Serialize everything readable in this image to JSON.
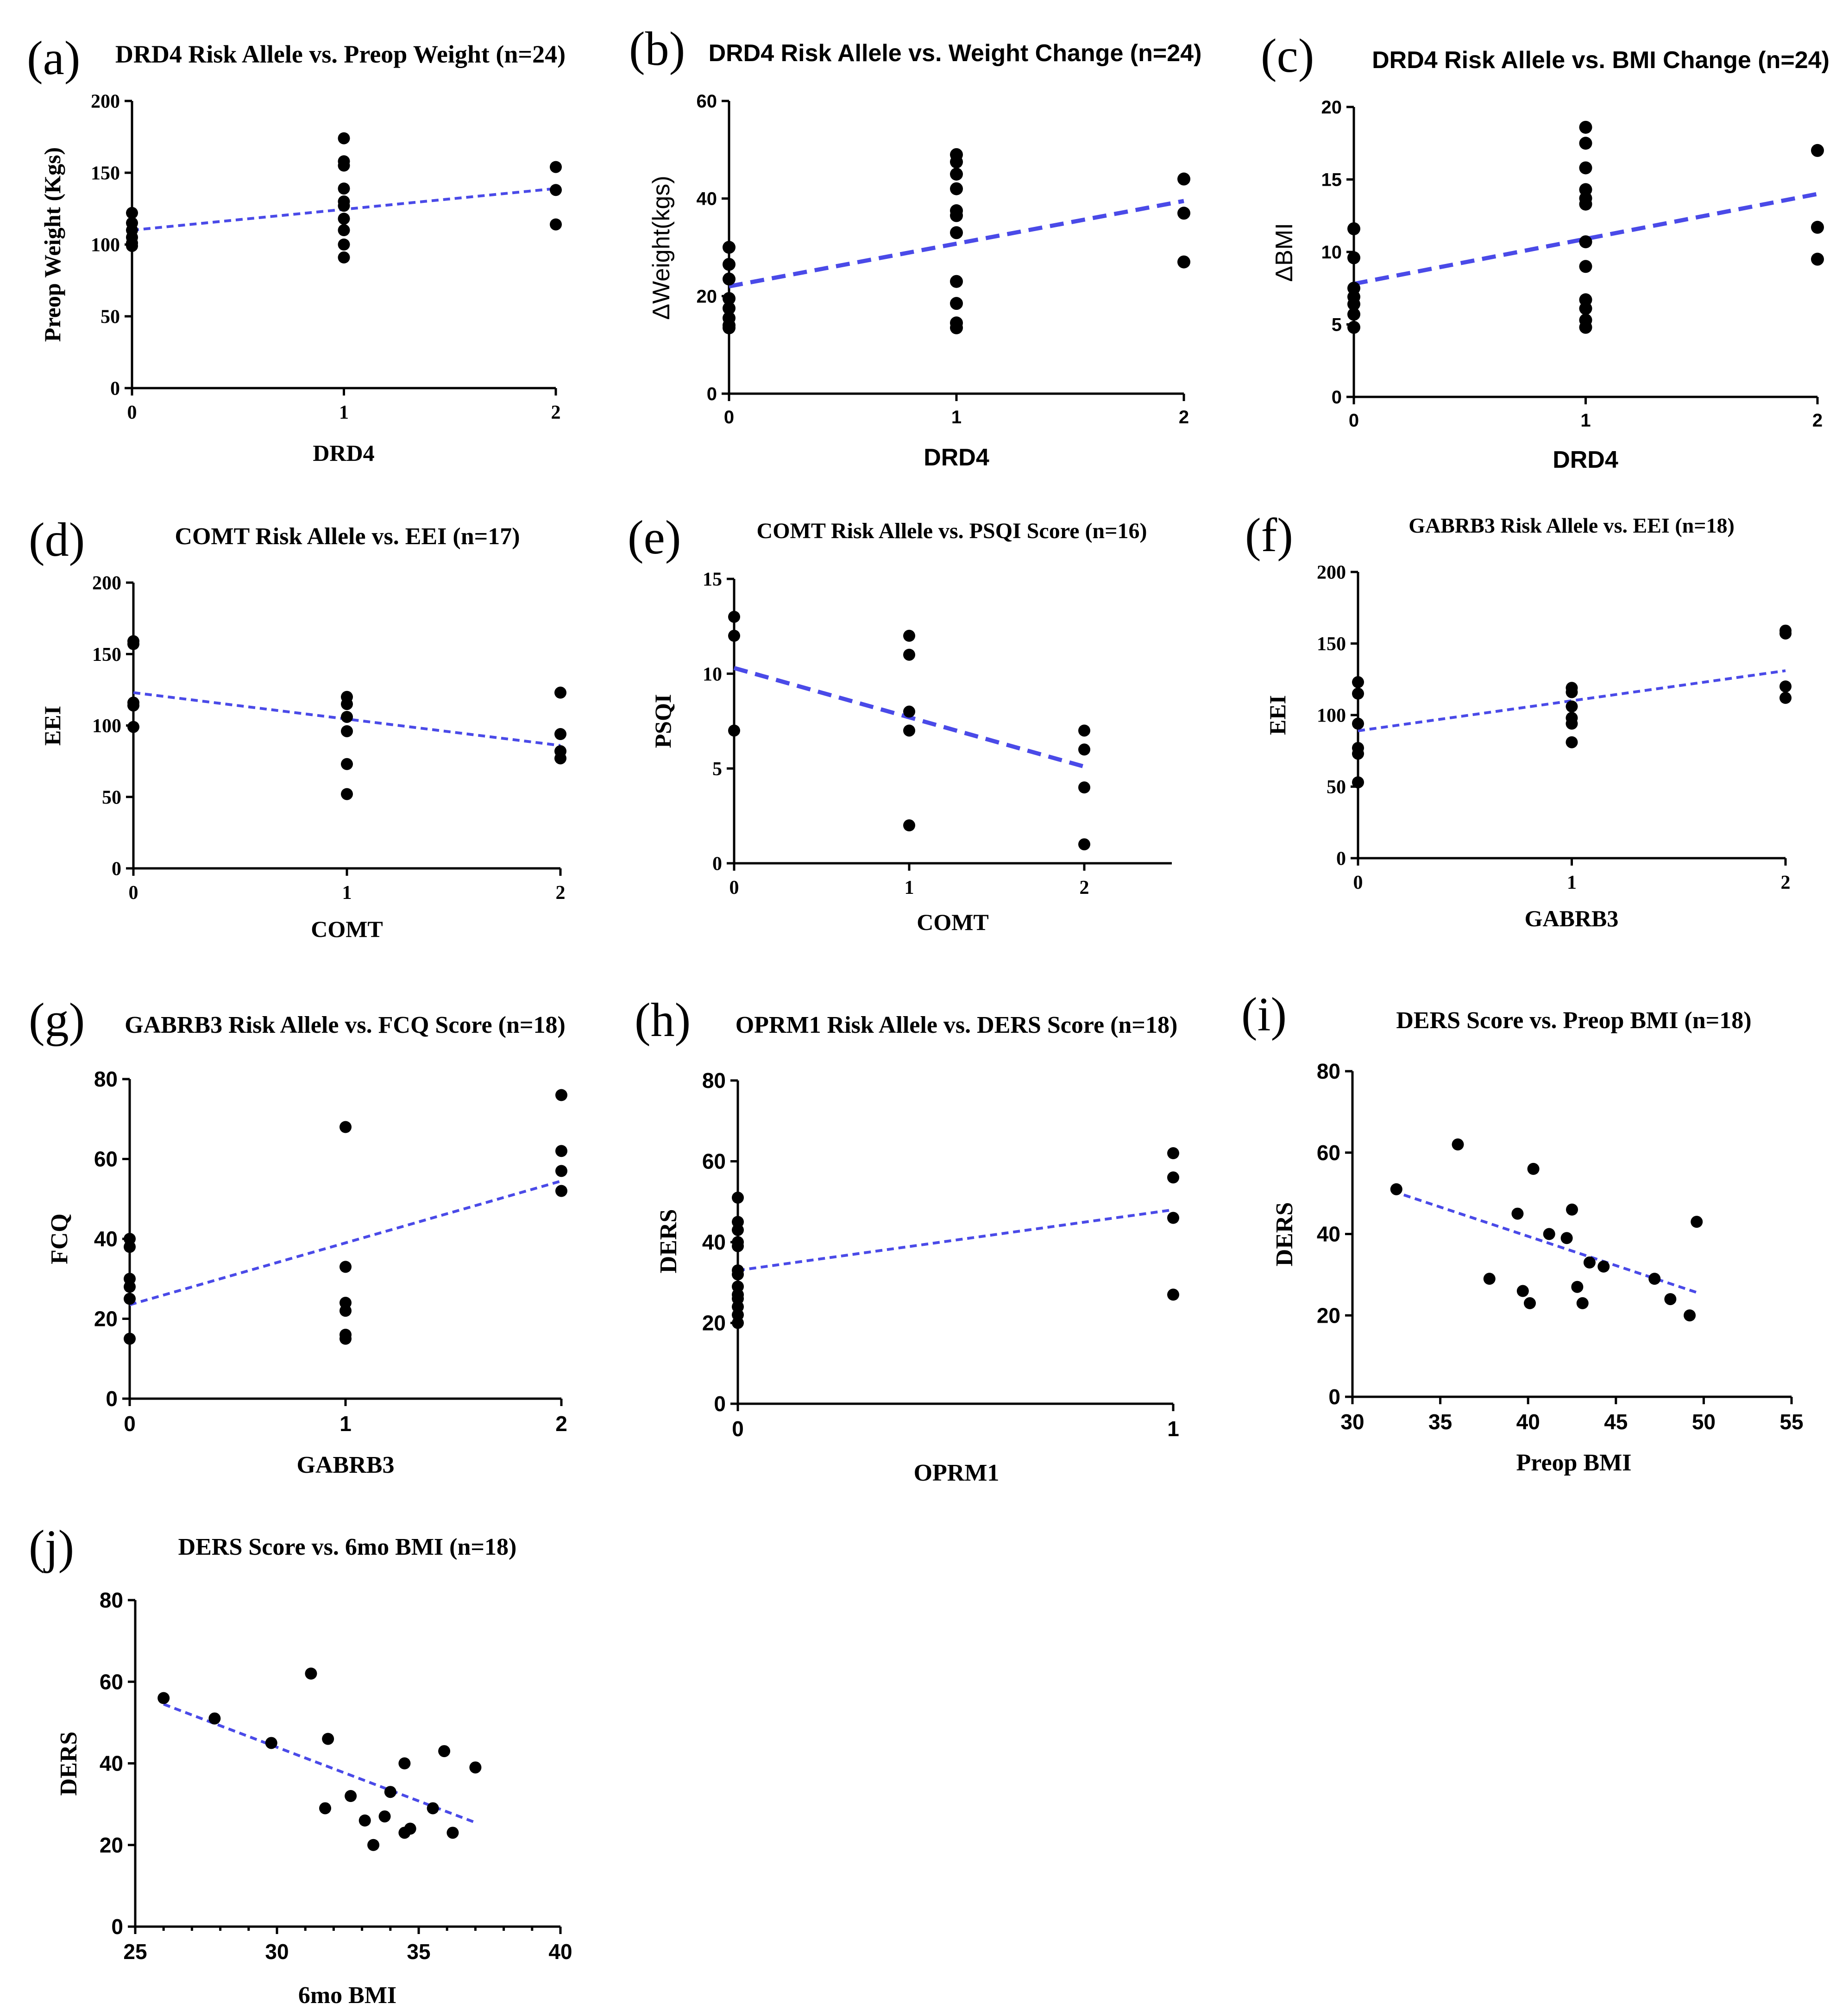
{
  "figure": {
    "description_count": 10
  },
  "chart_data": [
    {
      "id": "a",
      "panel_label": "(a)",
      "type": "scatter",
      "title": "DRD4 Risk Allele vs. Preop Weight (n=24)",
      "xlabel": "DRD4",
      "ylabel": "Preop Weight (Kgs)",
      "xlim": [
        0,
        2
      ],
      "ylim": [
        0,
        200
      ],
      "xticks": [
        0,
        1,
        2
      ],
      "yticks": [
        0,
        50,
        100,
        150,
        200
      ],
      "fit_line": {
        "from": [
          0,
          110
        ],
        "to": [
          2,
          139
        ]
      },
      "points": [
        [
          0,
          122
        ],
        [
          0,
          115
        ],
        [
          0,
          110
        ],
        [
          0,
          105
        ],
        [
          0,
          101
        ],
        [
          0,
          99
        ],
        [
          1,
          174
        ],
        [
          1,
          158
        ],
        [
          1,
          155
        ],
        [
          1,
          139
        ],
        [
          1,
          130
        ],
        [
          1,
          127
        ],
        [
          1,
          118
        ],
        [
          1,
          110
        ],
        [
          1,
          100
        ],
        [
          1,
          91
        ],
        [
          2,
          154
        ],
        [
          2,
          138
        ],
        [
          2,
          114
        ]
      ]
    },
    {
      "id": "b",
      "panel_label": "(b)",
      "type": "scatter",
      "title": "DRD4 Risk Allele vs. Weight Change (n=24)",
      "xlabel": "DRD4",
      "ylabel": "ΔWeight(kgs)",
      "xlim": [
        0,
        2
      ],
      "ylim": [
        0,
        60
      ],
      "xticks": [
        0,
        1,
        2
      ],
      "yticks": [
        0,
        20,
        40,
        60
      ],
      "fit_line": {
        "from": [
          0,
          22
        ],
        "to": [
          2,
          39.5
        ]
      },
      "points": [
        [
          0,
          30
        ],
        [
          0,
          26.5
        ],
        [
          0,
          23.5
        ],
        [
          0,
          19.5
        ],
        [
          0,
          17.5
        ],
        [
          0,
          15.5
        ],
        [
          0,
          14
        ],
        [
          0,
          13.5
        ],
        [
          1,
          49
        ],
        [
          1,
          47.5
        ],
        [
          1,
          45
        ],
        [
          1,
          42
        ],
        [
          1,
          37.5
        ],
        [
          1,
          36.5
        ],
        [
          1,
          33
        ],
        [
          1,
          23
        ],
        [
          1,
          18.5
        ],
        [
          1,
          14.5
        ],
        [
          1,
          13.5
        ],
        [
          2,
          44
        ],
        [
          2,
          37
        ],
        [
          2,
          27
        ]
      ]
    },
    {
      "id": "c",
      "panel_label": "(c)",
      "type": "scatter",
      "title": "DRD4 Risk Allele vs. BMI Change (n=24)",
      "xlabel": "DRD4",
      "ylabel": "ΔBMI",
      "xlim": [
        0,
        2
      ],
      "ylim": [
        0,
        20
      ],
      "xticks": [
        0,
        1,
        2
      ],
      "yticks": [
        0,
        5,
        10,
        15,
        20
      ],
      "fit_line": {
        "from": [
          0,
          7.8
        ],
        "to": [
          2,
          14
        ]
      },
      "points": [
        [
          0,
          11.6
        ],
        [
          0,
          9.6
        ],
        [
          0,
          7.5
        ],
        [
          0,
          6.9
        ],
        [
          0,
          6.4
        ],
        [
          0,
          5.7
        ],
        [
          0,
          4.8
        ],
        [
          1,
          18.6
        ],
        [
          1,
          17.5
        ],
        [
          1,
          15.8
        ],
        [
          1,
          14.3
        ],
        [
          1,
          13.7
        ],
        [
          1,
          13.3
        ],
        [
          1,
          10.7
        ],
        [
          1,
          9
        ],
        [
          1,
          6.7
        ],
        [
          1,
          6.1
        ],
        [
          1,
          5.3
        ],
        [
          1,
          4.8
        ],
        [
          2,
          17
        ],
        [
          2,
          11.7
        ],
        [
          2,
          9.5
        ]
      ]
    },
    {
      "id": "d",
      "panel_label": "(d)",
      "type": "scatter",
      "title": "COMT Risk Allele vs. EEI (n=17)",
      "xlabel": "COMT",
      "ylabel": "EEI",
      "xlim": [
        0,
        2
      ],
      "ylim": [
        0,
        200
      ],
      "xticks": [
        0,
        1,
        2
      ],
      "yticks": [
        0,
        50,
        100,
        150,
        200
      ],
      "fit_line": {
        "from": [
          0,
          123
        ],
        "to": [
          2,
          86
        ]
      },
      "points": [
        [
          0,
          159
        ],
        [
          0,
          157
        ],
        [
          0,
          116
        ],
        [
          0,
          114
        ],
        [
          0,
          99
        ],
        [
          1,
          120
        ],
        [
          1,
          115
        ],
        [
          1,
          106
        ],
        [
          1,
          96
        ],
        [
          1,
          73
        ],
        [
          1,
          52
        ],
        [
          2,
          123
        ],
        [
          2,
          94
        ],
        [
          2,
          82
        ],
        [
          2,
          77
        ]
      ]
    },
    {
      "id": "e",
      "panel_label": "(e)",
      "type": "scatter",
      "title": "COMT Risk Allele vs. PSQI Score (n=16)",
      "xlabel": "COMT",
      "ylabel": "PSQI",
      "xlim": [
        0,
        2.5
      ],
      "ylim": [
        0,
        15
      ],
      "xticks": [
        0,
        1,
        2
      ],
      "yticks": [
        0,
        5,
        10,
        15
      ],
      "fit_line": {
        "from": [
          0,
          10.3
        ],
        "to": [
          2,
          5.1
        ]
      },
      "points": [
        [
          0,
          13
        ],
        [
          0,
          12
        ],
        [
          0,
          7
        ],
        [
          1,
          12
        ],
        [
          1,
          11
        ],
        [
          1,
          8
        ],
        [
          1,
          7
        ],
        [
          1,
          2
        ],
        [
          2,
          7
        ],
        [
          2,
          6
        ],
        [
          2,
          4
        ],
        [
          2,
          1
        ]
      ]
    },
    {
      "id": "f",
      "panel_label": "(f)",
      "type": "scatter",
      "title": "GABRB3 Risk Allele vs. EEI (n=18)",
      "xlabel": "GABRB3",
      "ylabel": "EEI",
      "xlim": [
        0,
        2
      ],
      "ylim": [
        0,
        200
      ],
      "xticks": [
        0,
        1,
        2
      ],
      "yticks": [
        0,
        50,
        100,
        150,
        200
      ],
      "fit_line": {
        "from": [
          0,
          89
        ],
        "to": [
          2,
          131
        ]
      },
      "points": [
        [
          0,
          123
        ],
        [
          0,
          115
        ],
        [
          0,
          94
        ],
        [
          0,
          77
        ],
        [
          0,
          73
        ],
        [
          0,
          53
        ],
        [
          1,
          119
        ],
        [
          1,
          116
        ],
        [
          1,
          106
        ],
        [
          1,
          98
        ],
        [
          1,
          94
        ],
        [
          1,
          81
        ],
        [
          2,
          159
        ],
        [
          2,
          157
        ],
        [
          2,
          120
        ],
        [
          2,
          112
        ]
      ]
    },
    {
      "id": "g",
      "panel_label": "(g)",
      "type": "scatter",
      "title": "GABRB3 Risk Allele vs. FCQ Score (n=18)",
      "xlabel": "GABRB3",
      "ylabel": "FCQ",
      "xlim": [
        0,
        2
      ],
      "ylim": [
        0,
        80
      ],
      "xticks": [
        0,
        1,
        2
      ],
      "yticks": [
        0,
        20,
        40,
        60,
        80
      ],
      "fit_line": {
        "from": [
          0,
          23.5
        ],
        "to": [
          2,
          54.5
        ]
      },
      "points": [
        [
          0,
          40
        ],
        [
          0,
          38
        ],
        [
          0,
          30
        ],
        [
          0,
          28
        ],
        [
          0,
          25
        ],
        [
          0,
          15
        ],
        [
          1,
          68
        ],
        [
          1,
          33
        ],
        [
          1,
          24
        ],
        [
          1,
          22
        ],
        [
          1,
          16
        ],
        [
          1,
          15
        ],
        [
          2,
          76
        ],
        [
          2,
          62
        ],
        [
          2,
          57
        ],
        [
          2,
          52
        ]
      ]
    },
    {
      "id": "h",
      "panel_label": "(h)",
      "type": "scatter",
      "title": "OPRM1 Risk Allele vs. DERS Score (n=18)",
      "xlabel": "OPRM1",
      "ylabel": "DERS",
      "xlim": [
        0,
        1
      ],
      "ylim": [
        0,
        80
      ],
      "xticks": [
        0,
        1
      ],
      "yticks": [
        0,
        20,
        40,
        60,
        80
      ],
      "fit_line": {
        "from": [
          0,
          33
        ],
        "to": [
          1,
          48
        ]
      },
      "points": [
        [
          0,
          51
        ],
        [
          0,
          45
        ],
        [
          0,
          43
        ],
        [
          0,
          40
        ],
        [
          0,
          39
        ],
        [
          0,
          33
        ],
        [
          0,
          32
        ],
        [
          0,
          29
        ],
        [
          0,
          27
        ],
        [
          0,
          26
        ],
        [
          0,
          24
        ],
        [
          0,
          22
        ],
        [
          0,
          20
        ],
        [
          1,
          62
        ],
        [
          1,
          56
        ],
        [
          1,
          46
        ],
        [
          1,
          27
        ]
      ]
    },
    {
      "id": "i",
      "panel_label": "(i)",
      "type": "scatter",
      "title": "DERS Score vs. Preop BMI (n=18)",
      "xlabel": "Preop BMI",
      "ylabel": "DERS",
      "xlim": [
        30,
        55
      ],
      "ylim": [
        0,
        80
      ],
      "xticks": [
        30,
        35,
        40,
        45,
        50,
        55
      ],
      "yticks": [
        0,
        20,
        40,
        60,
        80
      ],
      "fit_line": {
        "from": [
          32.3,
          50.5
        ],
        "to": [
          49.7,
          25.5
        ]
      },
      "points": [
        [
          32.5,
          51
        ],
        [
          36,
          62
        ],
        [
          37.8,
          29
        ],
        [
          39.4,
          45
        ],
        [
          39.7,
          26
        ],
        [
          40.1,
          23
        ],
        [
          40.3,
          56
        ],
        [
          41.2,
          40
        ],
        [
          42.2,
          39
        ],
        [
          42.5,
          46
        ],
        [
          42.8,
          27
        ],
        [
          43.1,
          23
        ],
        [
          43.5,
          33
        ],
        [
          44.3,
          32
        ],
        [
          47.2,
          29
        ],
        [
          48.1,
          24
        ],
        [
          49.2,
          20
        ],
        [
          49.6,
          43
        ]
      ]
    },
    {
      "id": "j",
      "panel_label": "(j)",
      "type": "scatter",
      "title": "DERS Score vs. 6mo BMI (n=18)",
      "xlabel": "6mo BMI",
      "ylabel": "DERS",
      "xlim": [
        25,
        40
      ],
      "ylim": [
        0,
        80
      ],
      "xticks": [
        25,
        30,
        35,
        40
      ],
      "yticks": [
        0,
        20,
        40,
        60,
        80
      ],
      "fit_line": {
        "from": [
          26,
          54.5
        ],
        "to": [
          37,
          25.5
        ]
      },
      "points": [
        [
          26,
          56
        ],
        [
          27.8,
          51
        ],
        [
          29.8,
          45
        ],
        [
          31.2,
          62
        ],
        [
          31.7,
          29
        ],
        [
          31.8,
          46
        ],
        [
          32.6,
          32
        ],
        [
          33.1,
          26
        ],
        [
          33.4,
          20
        ],
        [
          33.8,
          27
        ],
        [
          34,
          33
        ],
        [
          34.5,
          40
        ],
        [
          34.5,
          23
        ],
        [
          34.7,
          24
        ],
        [
          35.5,
          29
        ],
        [
          35.9,
          43
        ],
        [
          36.2,
          23
        ],
        [
          37,
          39
        ]
      ]
    }
  ]
}
